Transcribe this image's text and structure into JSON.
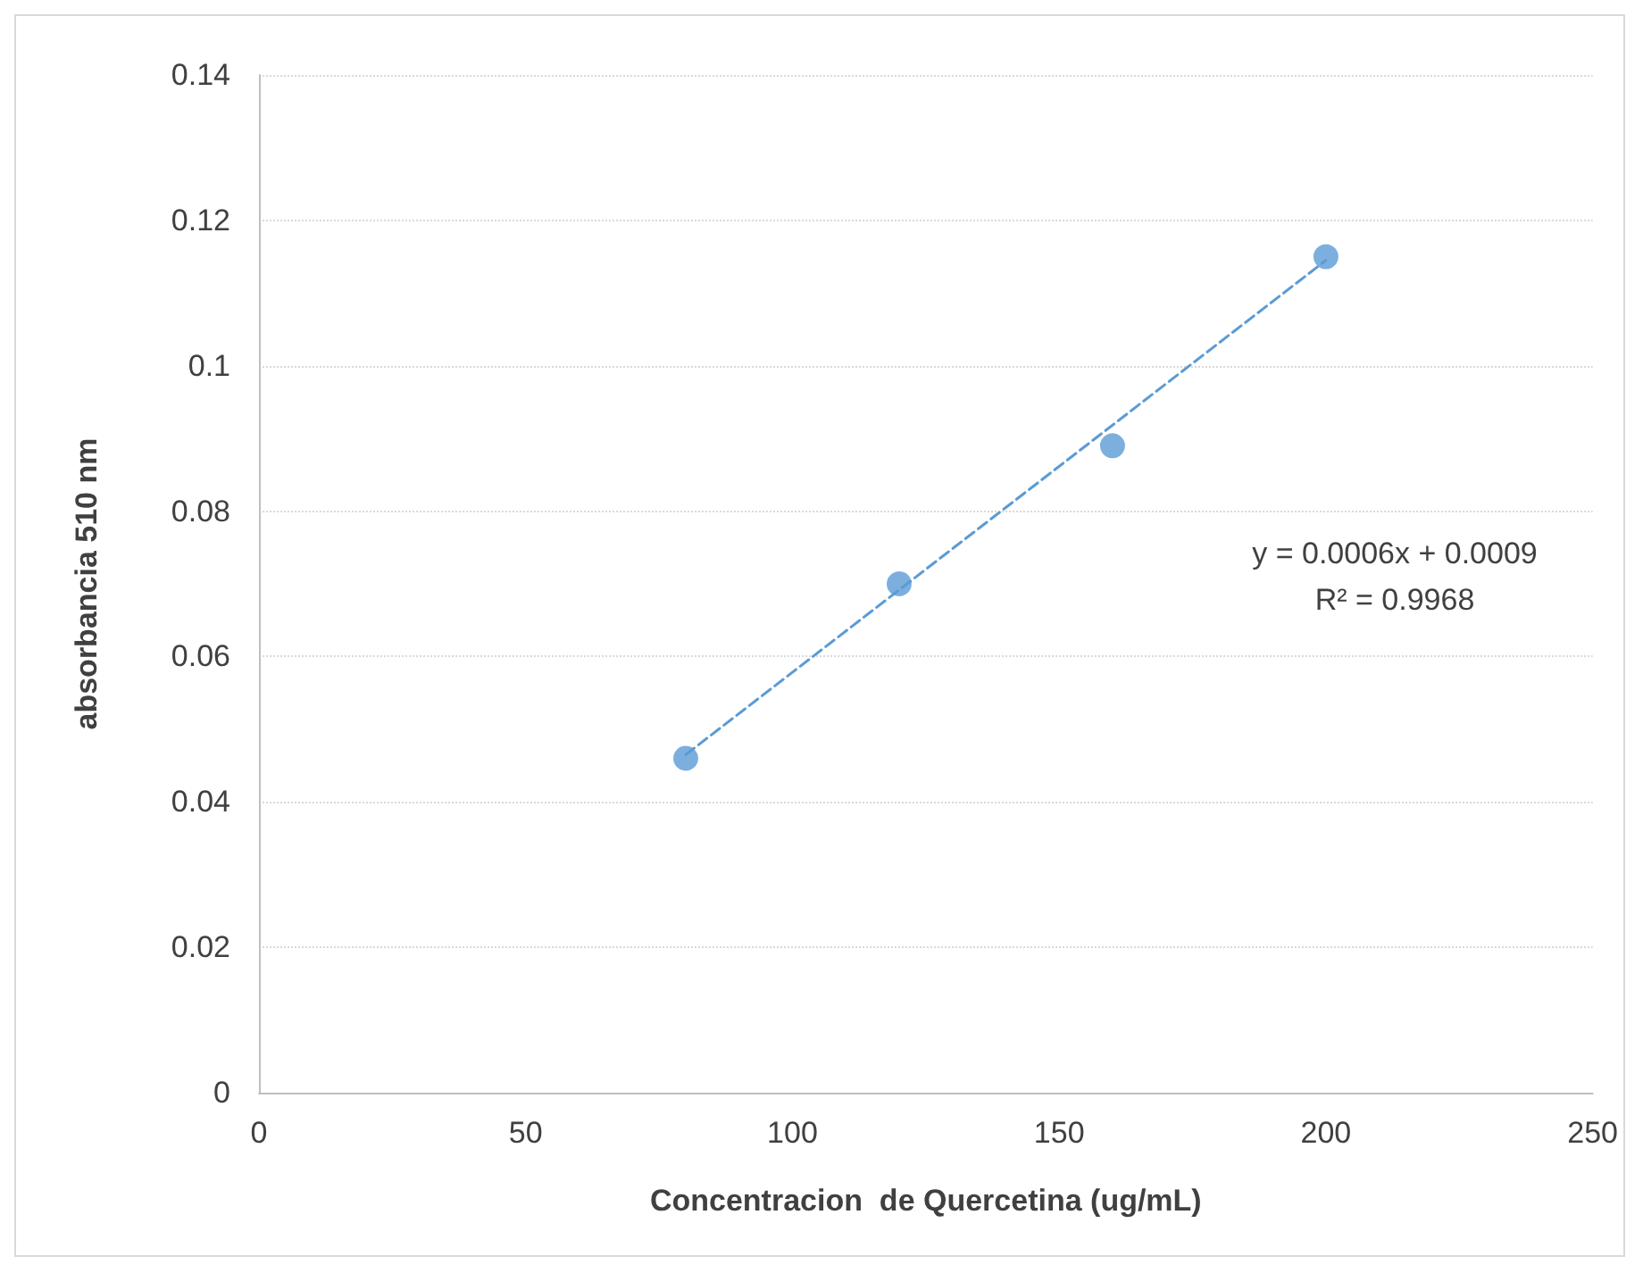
{
  "chart_data": {
    "type": "scatter",
    "xlabel": "Concentracion  de Quercetina (ug/mL)",
    "ylabel": "absorbancia 510 nm",
    "xlim": [
      0,
      250
    ],
    "xticks": [
      0,
      50,
      100,
      150,
      200,
      250
    ],
    "ylim": [
      0,
      0.14
    ],
    "yticks": [
      0,
      0.02,
      0.04,
      0.06,
      0.08,
      0.1,
      0.12,
      0.14
    ],
    "grid": "y",
    "marker": "circle",
    "series": [
      {
        "color": "#5b9bd5",
        "x": [
          80,
          120,
          160,
          200
        ],
        "values": [
          0.046,
          0.07,
          0.089,
          0.115
        ]
      },
      {
        "type": "line",
        "color": "#5b9bd5",
        "x": [
          80,
          200
        ],
        "values": [
          0.0465,
          0.1145
        ],
        "line_style": "dashed",
        "marker": "none"
      }
    ],
    "annotations": [
      "y = 0.0006x + 0.0009\nR² = 0.9968"
    ]
  }
}
